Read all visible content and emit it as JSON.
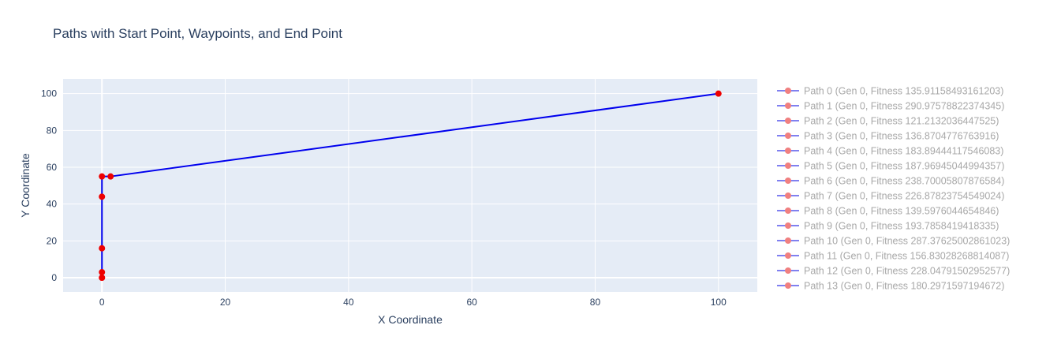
{
  "chart_data": {
    "type": "line",
    "title": "Paths with Start Point, Waypoints, and End Point",
    "xlabel": "X Coordinate",
    "ylabel": "Y Coordinate",
    "xlim": [
      -6.3,
      106.3
    ],
    "ylim": [
      -7.7,
      108
    ],
    "x_ticks": [
      0,
      20,
      40,
      60,
      80,
      100
    ],
    "y_ticks": [
      0,
      20,
      40,
      60,
      80,
      100
    ],
    "grid": true,
    "legend_position": "right",
    "line_color": "#0000ee",
    "marker_color": "#ee0000",
    "visible_path": {
      "x": [
        0,
        0,
        0,
        0,
        0,
        0,
        1.4,
        100
      ],
      "y": [
        0,
        0,
        3,
        16,
        44,
        55,
        55,
        100
      ]
    },
    "series": [
      {
        "name": "Path 0 (Gen 0, Fitness 135.91158493161203)"
      },
      {
        "name": "Path 1 (Gen 0, Fitness 290.97578822374345)"
      },
      {
        "name": "Path 2 (Gen 0, Fitness 121.2132036447525)"
      },
      {
        "name": "Path 3 (Gen 0, Fitness 136.8704776763916)"
      },
      {
        "name": "Path 4 (Gen 0, Fitness 183.89444117546083)"
      },
      {
        "name": "Path 5 (Gen 0, Fitness 187.96945044994357)"
      },
      {
        "name": "Path 6 (Gen 0, Fitness 238.70005807876584)"
      },
      {
        "name": "Path 7 (Gen 0, Fitness 226.87823754549024)"
      },
      {
        "name": "Path 8 (Gen 0, Fitness 139.5976044654846)"
      },
      {
        "name": "Path 9 (Gen 0, Fitness 193.7858419418335)"
      },
      {
        "name": "Path 10 (Gen 0, Fitness 287.37625002861023)"
      },
      {
        "name": "Path 11 (Gen 0, Fitness 156.83028268814087)"
      },
      {
        "name": "Path 12 (Gen 0, Fitness 228.04791502952577)"
      },
      {
        "name": "Path 13 (Gen 0, Fitness 180.2971597194672)"
      }
    ]
  }
}
